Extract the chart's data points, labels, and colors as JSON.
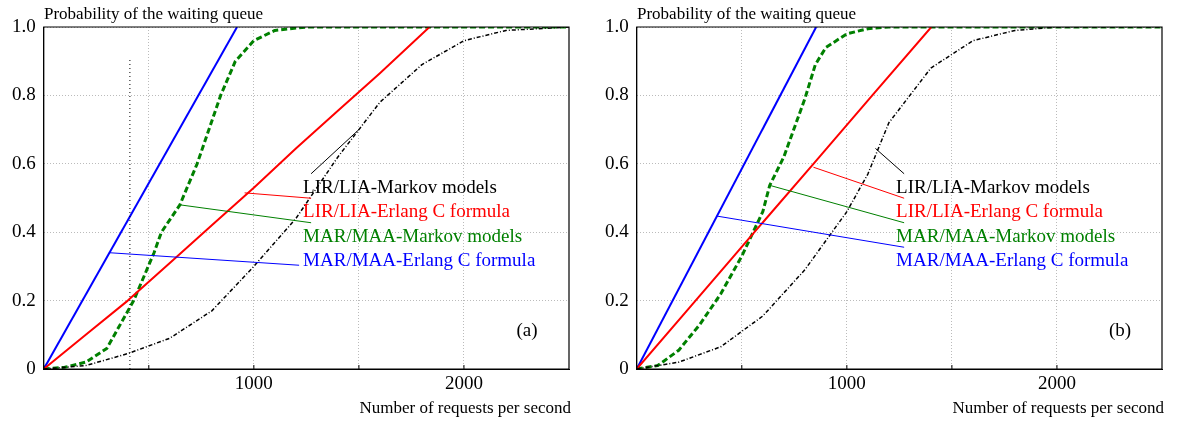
{
  "chart_data": [
    {
      "type": "line",
      "ylabel": "Probability of the waiting queue",
      "xlabel": "Number of requests per second",
      "xlim": [
        0,
        2500
      ],
      "ylim": [
        0,
        1
      ],
      "xticks": [
        {
          "value": 0,
          "label": null
        },
        {
          "value": 500,
          "label": null
        },
        {
          "value": 1000,
          "label": "1000"
        },
        {
          "value": 1500,
          "label": null
        },
        {
          "value": 2000,
          "label": "2000"
        }
      ],
      "yticks": [
        0,
        0.2,
        0.4,
        0.6,
        0.8,
        {
          "value": 1,
          "label": "1.0"
        }
      ],
      "grid": true,
      "legend": false,
      "marker": "none",
      "series": [
        {
          "color": "#000000",
          "line_style": "dotted",
          "x": [
            0,
            200,
            400,
            600,
            800,
            1000,
            1200,
            1400,
            1500,
            1600,
            1800,
            2000,
            2200,
            2500
          ],
          "values": [
            0,
            0.01,
            0.045,
            0.09,
            0.17,
            0.3,
            0.44,
            0.62,
            0.7,
            0.78,
            0.89,
            0.96,
            0.99,
            1
          ]
        },
        {
          "color": "#ff0000",
          "line_style": "solid",
          "x": [
            0,
            200,
            400,
            600,
            800,
            1000,
            1200,
            1400,
            1600,
            1836
          ],
          "values": [
            0,
            0.1,
            0.2,
            0.31,
            0.42,
            0.53,
            0.645,
            0.755,
            0.865,
            1
          ]
        },
        {
          "color": "#008000",
          "line_style": "dashed",
          "x": [
            0,
            100,
            200,
            300,
            428,
            525,
            560,
            648,
            730,
            842,
            912,
            1000,
            1100,
            1250,
            2500
          ],
          "values": [
            0,
            0.005,
            0.02,
            0.06,
            0.2,
            0.34,
            0.4,
            0.48,
            0.6,
            0.8,
            0.9,
            0.96,
            0.99,
            1,
            1
          ]
        },
        {
          "color": "#0000ff",
          "line_style": "solid",
          "x": [
            0,
            920
          ],
          "values": [
            0,
            1
          ]
        }
      ],
      "ref_lines": [
        {
          "axis": "x",
          "value": 410,
          "color": "#000000",
          "line_style": "dotted"
        }
      ],
      "annotations": [
        {
          "text": "LIR/LIA-Markov models",
          "x": 1500,
          "y": 0.7
        },
        {
          "text": "LIR/LIA-Erlang C formula",
          "x": 956,
          "y": 0.515
        },
        {
          "text": "MAR/MAA-Markov models",
          "x": 648,
          "y": 0.48
        },
        {
          "text": "MAR/MAA-Erlang C formula",
          "x": 313,
          "y": 0.34
        },
        "(a)"
      ]
    },
    {
      "type": "line",
      "ylabel": "Probability of the waiting queue",
      "xlabel": "Number of requests per second",
      "xlim": [
        0,
        2500
      ],
      "ylim": [
        0,
        1
      ],
      "xticks": [
        {
          "value": 0,
          "label": null
        },
        {
          "value": 500,
          "label": null
        },
        {
          "value": 1000,
          "label": "1000"
        },
        {
          "value": 1500,
          "label": null
        },
        {
          "value": 2000,
          "label": "2000"
        }
      ],
      "yticks": [
        0,
        0.2,
        0.4,
        0.6,
        0.8,
        {
          "value": 1,
          "label": "1.0"
        }
      ],
      "grid": true,
      "legend": false,
      "marker": "none",
      "series": [
        {
          "color": "#000000",
          "line_style": "dotted",
          "x": [
            0,
            200,
            400,
            600,
            800,
            1000,
            1100,
            1200,
            1300,
            1400,
            1600,
            1800,
            2000,
            2500
          ],
          "values": [
            0,
            0.02,
            0.065,
            0.155,
            0.29,
            0.46,
            0.57,
            0.72,
            0.8,
            0.88,
            0.96,
            0.99,
            1,
            1
          ]
        },
        {
          "color": "#ff0000",
          "line_style": "solid",
          "x": [
            0,
            280,
            560,
            841,
            1121,
            1402
          ],
          "values": [
            0,
            0.2,
            0.4,
            0.6,
            0.8,
            1
          ]
        },
        {
          "color": "#008000",
          "line_style": "dashed",
          "x": [
            0,
            100,
            200,
            300,
            400,
            500,
            600,
            633,
            700,
            800,
            850,
            900,
            1000,
            1100,
            1200,
            2500
          ],
          "values": [
            0,
            0.01,
            0.055,
            0.13,
            0.22,
            0.33,
            0.46,
            0.537,
            0.62,
            0.79,
            0.89,
            0.94,
            0.98,
            0.995,
            1,
            1
          ]
        },
        {
          "color": "#0000ff",
          "line_style": "solid",
          "x": [
            0,
            854
          ],
          "values": [
            0,
            1
          ]
        }
      ],
      "annotations": [
        {
          "text": "LIR/LIA-Markov models",
          "x": 1136,
          "y": 0.645
        },
        {
          "text": "LIR/LIA-Erlang C formula",
          "x": 841,
          "y": 0.59
        },
        {
          "text": "MAR/MAA-Markov models",
          "x": 633,
          "y": 0.537
        },
        {
          "text": "MAR/MAA-Erlang C formula",
          "x": 383,
          "y": 0.447
        },
        "(b)"
      ]
    }
  ]
}
